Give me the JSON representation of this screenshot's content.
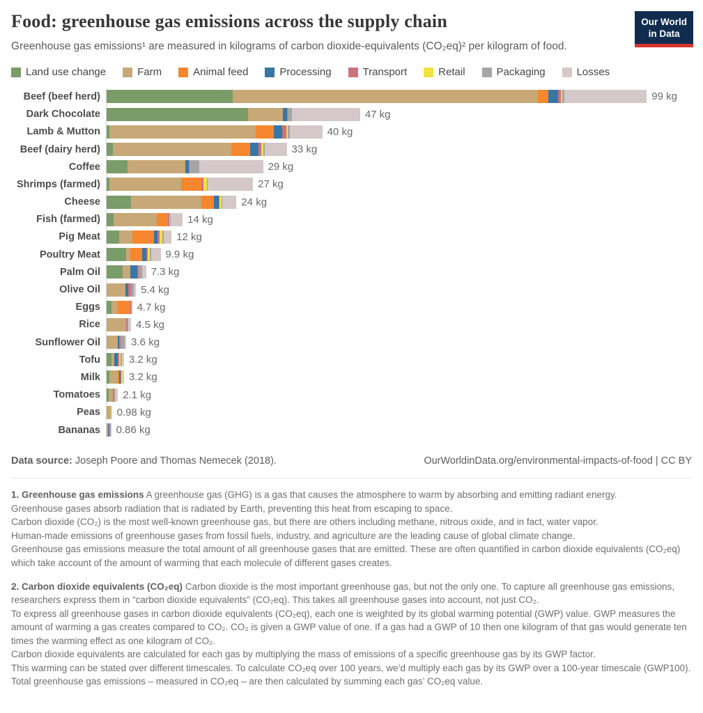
{
  "header": {
    "title": "Food: greenhouse gas emissions across the supply chain",
    "subtitle": "Greenhouse gas emissions¹ are measured in kilograms of carbon dioxide-equivalents (CO₂eq)² per kilogram of food.",
    "logo": {
      "line1": "Our World",
      "line2": "in Data",
      "background": "#102D50",
      "accent": "#D8352F"
    }
  },
  "chart_data": {
    "type": "bar",
    "orientation": "horizontal-stacked",
    "unit": "kg CO₂eq per kilogram of food",
    "legend_position": "top",
    "grid": false,
    "categories": [
      "Beef (beef herd)",
      "Dark Chocolate",
      "Lamb & Mutton",
      "Beef (dairy herd)",
      "Coffee",
      "Shrimps (farmed)",
      "Cheese",
      "Fish (farmed)",
      "Pig Meat",
      "Poultry Meat",
      "Palm Oil",
      "Olive Oil",
      "Eggs",
      "Rice",
      "Sunflower Oil",
      "Tofu",
      "Milk",
      "Tomatoes",
      "Peas",
      "Bananas"
    ],
    "series": [
      {
        "name": "Land use change",
        "color": "#7A9C69",
        "values": [
          23.2,
          26.0,
          0.55,
          1.2,
          3.8,
          0.55,
          4.5,
          1.3,
          2.3,
          3.6,
          2.9,
          0,
          0.95,
          0,
          0,
          0.95,
          0.5,
          0.4,
          0,
          0.03
        ]
      },
      {
        "name": "Farm",
        "color": "#C7A876",
        "values": [
          56.2,
          6.5,
          26.9,
          21.7,
          10.7,
          13.2,
          13.0,
          7.9,
          2.4,
          0.7,
          1.5,
          3.5,
          1.05,
          3.6,
          2.1,
          0.5,
          1.55,
          0.7,
          0.72,
          0.27
        ]
      },
      {
        "name": "Animal feed",
        "color": "#F6872F",
        "values": [
          1.9,
          0,
          3.3,
          3.5,
          0,
          3.7,
          2.3,
          2.05,
          4.0,
          2.3,
          0,
          0,
          2.4,
          0,
          0,
          0,
          0.3,
          0,
          0,
          0
        ]
      },
      {
        "name": "Processing",
        "color": "#3876A5",
        "values": [
          1.8,
          0.7,
          1.6,
          1.6,
          0.65,
          0,
          0.85,
          0.05,
          0.7,
          0.65,
          1.2,
          0.5,
          0,
          0.05,
          0.2,
          0.65,
          0.2,
          0.02,
          0,
          0.06
        ]
      },
      {
        "name": "Transport",
        "color": "#CB7280",
        "values": [
          0.5,
          0.1,
          0.7,
          0.5,
          0.1,
          0.4,
          0.15,
          0.3,
          0.4,
          0.3,
          0.3,
          0.45,
          0.1,
          0.15,
          0.25,
          0.2,
          0.1,
          0.25,
          0.08,
          0.3
        ]
      },
      {
        "name": "Retail",
        "color": "#F0E242",
        "values": [
          0.25,
          0.05,
          0.35,
          0.3,
          0.05,
          0.6,
          0.4,
          0.1,
          0.4,
          0.35,
          0.02,
          0.05,
          0.05,
          0.08,
          0.02,
          0.3,
          0.25,
          0.02,
          0.04,
          0.02
        ]
      },
      {
        "name": "Packaging",
        "color": "#A5A5A5",
        "values": [
          0.35,
          0.8,
          0.3,
          0.35,
          1.7,
          0.2,
          0.15,
          0.1,
          0.35,
          0.35,
          0.65,
          0.45,
          0.1,
          0.08,
          0.75,
          0.25,
          0.1,
          0.15,
          0.04,
          0.07
        ]
      },
      {
        "name": "Losses",
        "color": "#D4C8C8",
        "values": [
          15.2,
          12.5,
          6.0,
          4.0,
          11.8,
          8.3,
          2.55,
          2.2,
          1.4,
          1.7,
          0.7,
          0.45,
          0.05,
          0.55,
          0.3,
          0.35,
          0.2,
          0.55,
          0.1,
          0.11
        ]
      }
    ],
    "totals": [
      99.4,
      46.65,
      39.7,
      33.15,
      28.8,
      26.95,
      23.9,
      14.0,
      11.95,
      9.95,
      7.27,
      5.4,
      4.7,
      4.51,
      3.62,
      3.2,
      3.2,
      2.09,
      0.98,
      0.86
    ],
    "total_labels": [
      "99 kg",
      "47 kg",
      "40 kg",
      "33 kg",
      "29 kg",
      "27 kg",
      "24 kg",
      "14 kg",
      "12 kg",
      "9.9 kg",
      "7.3 kg",
      "5.4 kg",
      "4.7 kg",
      "4.5 kg",
      "3.6 kg",
      "3.2 kg",
      "3.2 kg",
      "2.1 kg",
      "0.98 kg",
      "0.86 kg"
    ]
  },
  "footer": {
    "source_label": "Data source:",
    "source_text": "Joseph Poore and Thomas Nemecek (2018).",
    "link": "OurWorldinData.org/environmental-impacts-of-food | CC BY"
  },
  "footnotes": {
    "n1": {
      "title": "1. Greenhouse gas emissions",
      "text": "A greenhouse gas (GHG) is a gas that causes the atmosphere to warm by absorbing and emitting radiant energy.\nGreenhouse gases absorb radiation that is radiated by Earth, preventing this heat from escaping to space.\nCarbon dioxide (CO₂) is the most well-known greenhouse gas, but there are others including methane, nitrous oxide, and in fact, water vapor.\nHuman-made emissions of greenhouse gases from fossil fuels, industry, and agriculture are the leading cause of global climate change.\nGreenhouse gas emissions measure the total amount of all greenhouse gases that are emitted. These are often quantified in carbon dioxide equivalents (CO₂eq) which take account of the amount of warming that each molecule of different gases creates."
    },
    "n2": {
      "title": "2. Carbon dioxide equivalents (CO₂eq)",
      "text": "Carbon dioxide is the most important greenhouse gas, but not the only one. To capture all greenhouse gas emissions, researchers express them in “carbon dioxide equivalents” (CO₂eq). This takes all greenhouse gases into account, not just CO₂.\nTo express all greenhouse gases in carbon dioxide equivalents (CO₂eq), each one is weighted by its global warming potential (GWP) value. GWP measures the amount of warming a gas creates compared to CO₂. CO₂ is given a GWP value of one. If a gas had a GWP of 10 then one kilogram of that gas would generate ten times the warming effect as one kilogram of CO₂.\nCarbon dioxide equivalents are calculated for each gas by multiplying the mass of emissions of a specific greenhouse gas by its GWP factor.\nThis warming can be stated over different timescales. To calculate CO₂eq over 100 years, we’d multiply each gas by its GWP over a 100-year timescale (GWP100).\nTotal greenhouse gas emissions – measured in CO₂eq – are then calculated by summing each gas’ CO₂eq value."
    }
  }
}
